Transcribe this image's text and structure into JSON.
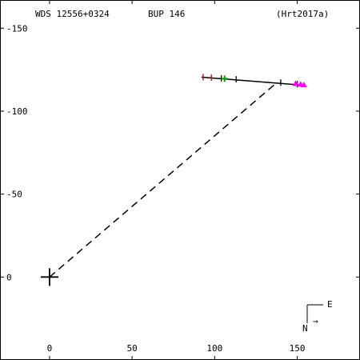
{
  "header": {
    "wds": "WDS 12556+0324",
    "disc": "BUP 146",
    "ref": "(Hrt2017a)"
  },
  "compass": {
    "east": "E",
    "north": "N",
    "arrow": "→"
  },
  "colors": {
    "frame": "#000000",
    "orbit": "#000000",
    "red": "#cc0000",
    "green": "#00a000",
    "magenta": "#ff00ff"
  },
  "chart_data": {
    "type": "scatter",
    "title": "",
    "xlim": [
      -30,
      188
    ],
    "ylim": [
      -50,
      167
    ],
    "x_ticks": [
      0,
      50,
      100,
      150
    ],
    "y_ticks": [
      0,
      50,
      100,
      150
    ],
    "x_tick_labels": [
      "0",
      "50",
      "100",
      "150"
    ],
    "y_tick_labels": [
      "0",
      "-50",
      "-100",
      "-150"
    ],
    "primary": [
      0,
      0
    ],
    "track": [
      [
        92,
        120.5
      ],
      [
        155,
        115.5
      ]
    ],
    "dashed_to": [
      138,
      117.5
    ],
    "series": [
      {
        "marker": "tick",
        "color": "red",
        "points": [
          [
            93,
            120.5
          ],
          [
            98,
            120.2
          ]
        ]
      },
      {
        "marker": "tick",
        "color": "black",
        "points": [
          [
            104,
            119.8
          ],
          [
            113,
            119.2
          ],
          [
            140,
            117.2
          ],
          [
            150,
            116.3
          ]
        ]
      },
      {
        "marker": "plus",
        "color": "green",
        "points": [
          [
            106,
            119.6
          ]
        ]
      },
      {
        "marker": "triangle",
        "color": "magenta",
        "points": [
          [
            149,
            116.6
          ],
          [
            152,
            116.2
          ],
          [
            154,
            115.8
          ]
        ]
      }
    ]
  }
}
